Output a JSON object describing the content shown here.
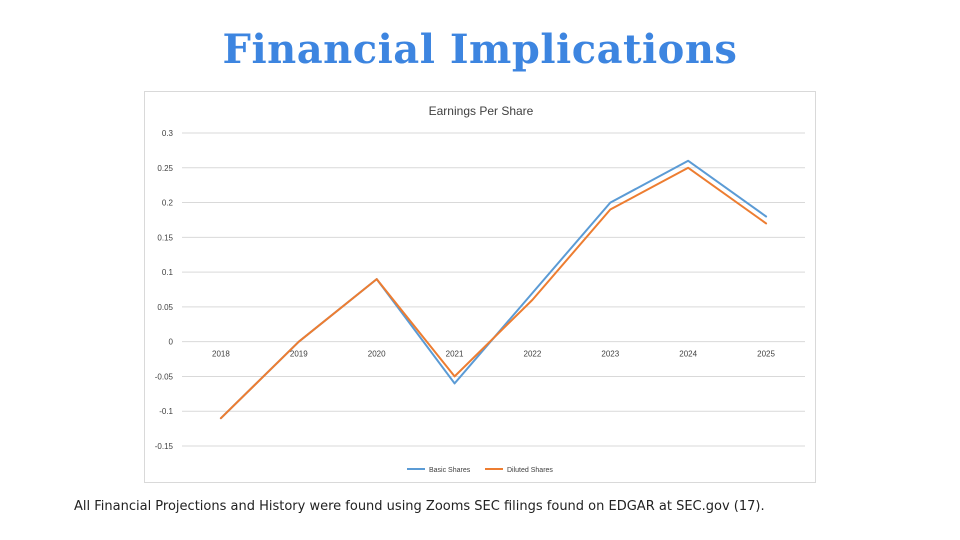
{
  "slide": {
    "title": "Financial Implications",
    "footnote": "All Financial Projections and History were found using Zooms SEC filings found on EDGAR at SEC.gov (17)."
  },
  "colors": {
    "title": "#3d85e0",
    "basic": "#5b9bd5",
    "diluted": "#ed7d31",
    "grid": "#d9d9d9"
  },
  "chart_data": {
    "type": "line",
    "title": "Earnings Per Share",
    "xlabel": "",
    "ylabel": "",
    "categories": [
      "2018",
      "2019",
      "2020",
      "2021",
      "2022",
      "2023",
      "2024",
      "2025"
    ],
    "series": [
      {
        "name": "Basic Shares",
        "color": "#5b9bd5",
        "values": [
          -0.11,
          0.0,
          0.09,
          -0.06,
          0.07,
          0.2,
          0.26,
          0.18
        ]
      },
      {
        "name": "Diluted Shares",
        "color": "#ed7d31",
        "values": [
          -0.11,
          0.0,
          0.09,
          -0.05,
          0.06,
          0.19,
          0.25,
          0.17
        ]
      }
    ],
    "ylim": [
      -0.15,
      0.3
    ],
    "yticks": [
      "0.3",
      "0.25",
      "0.2",
      "0.15",
      "0.1",
      "0.05",
      "0",
      "-0.05",
      "-0.1",
      "-0.15"
    ],
    "grid": true,
    "legend": "bottom"
  }
}
